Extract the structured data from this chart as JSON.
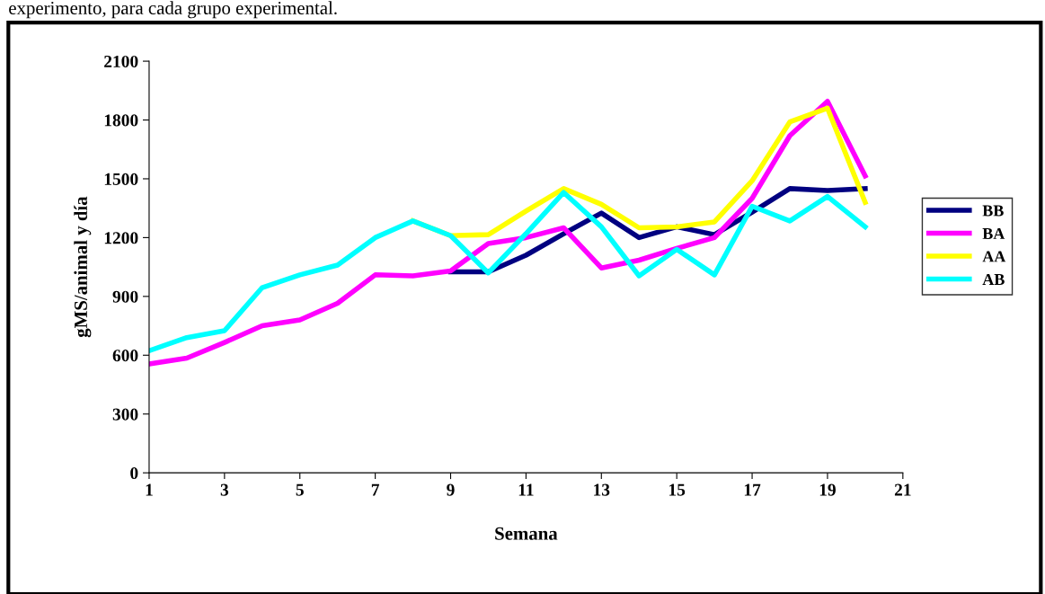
{
  "chart_data": {
    "type": "line",
    "xlabel": "Semana",
    "ylabel": "gMS/animal y día",
    "annotations": [
      "experimento, para cada grupo experimental."
    ],
    "x": [
      1,
      2,
      3,
      4,
      5,
      6,
      7,
      8,
      9,
      10,
      11,
      12,
      13,
      14,
      15,
      16,
      17,
      18,
      19,
      20
    ],
    "series": [
      {
        "name": "BB",
        "color": "#000080",
        "values": [
          null,
          null,
          null,
          null,
          null,
          null,
          null,
          null,
          1025,
          1025,
          1110,
          1220,
          1325,
          1200,
          1255,
          1215,
          1330,
          1450,
          1440,
          1450
        ]
      },
      {
        "name": "BA",
        "color": "#ff00ff",
        "values": [
          555,
          585,
          665,
          750,
          780,
          865,
          1010,
          1005,
          1030,
          1170,
          1200,
          1250,
          1045,
          1085,
          1145,
          1200,
          1400,
          1720,
          1895,
          1515
        ]
      },
      {
        "name": "AA",
        "color": "#ffff00",
        "values": [
          null,
          null,
          null,
          null,
          null,
          null,
          null,
          1285,
          1210,
          1215,
          1335,
          1450,
          1370,
          1250,
          1255,
          1280,
          1490,
          1790,
          1860,
          1380
        ]
      },
      {
        "name": "AB",
        "color": "#00ffff",
        "values": [
          623,
          690,
          725,
          945,
          1010,
          1060,
          1200,
          1285,
          1210,
          1020,
          1220,
          1430,
          1255,
          1005,
          1140,
          1010,
          1360,
          1285,
          1410,
          1255
        ]
      }
    ],
    "xlim": [
      1,
      21
    ],
    "xticks": [
      1,
      3,
      5,
      7,
      9,
      11,
      13,
      15,
      17,
      19,
      21
    ],
    "ylim": [
      0,
      2100
    ],
    "yticks": [
      0,
      300,
      600,
      900,
      1200,
      1500,
      1800,
      2100
    ],
    "grid": false,
    "legend": "right",
    "marker": "none",
    "line_style": "solid"
  }
}
